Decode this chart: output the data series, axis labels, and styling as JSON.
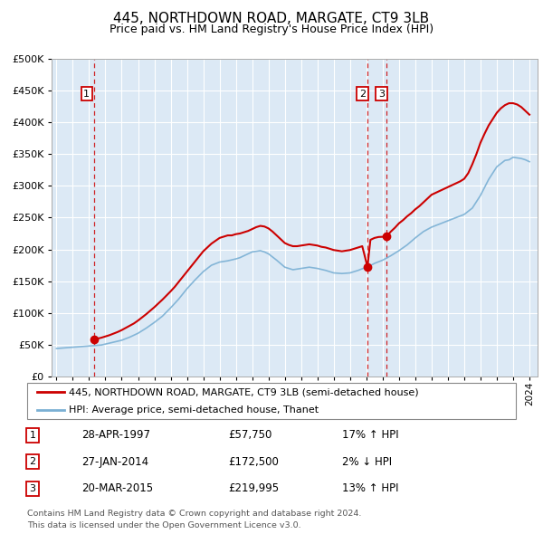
{
  "title": "445, NORTHDOWN ROAD, MARGATE, CT9 3LB",
  "subtitle": "Price paid vs. HM Land Registry's House Price Index (HPI)",
  "legend_label_red": "445, NORTHDOWN ROAD, MARGATE, CT9 3LB (semi-detached house)",
  "legend_label_blue": "HPI: Average price, semi-detached house, Thanet",
  "footer": "Contains HM Land Registry data © Crown copyright and database right 2024.\nThis data is licensed under the Open Government Licence v3.0.",
  "sales": [
    {
      "num": 1,
      "date": "28-APR-1997",
      "price": 57750,
      "price_str": "£57,750",
      "hpi_diff": "17% ↑ HPI",
      "year": 1997.3
    },
    {
      "num": 2,
      "date": "27-JAN-2014",
      "price": 172500,
      "price_str": "£172,500",
      "hpi_diff": "2% ↓ HPI",
      "year": 2014.07
    },
    {
      "num": 3,
      "date": "20-MAR-2015",
      "price": 219995,
      "price_str": "£219,995",
      "hpi_diff": "13% ↑ HPI",
      "year": 2015.22
    }
  ],
  "hpi_line": {
    "years": [
      1995,
      1995.25,
      1995.5,
      1995.75,
      1996,
      1996.25,
      1996.5,
      1996.75,
      1997,
      1997.25,
      1997.5,
      1997.75,
      1998,
      1998.25,
      1998.5,
      1998.75,
      1999,
      1999.25,
      1999.5,
      1999.75,
      2000,
      2000.25,
      2000.5,
      2000.75,
      2001,
      2001.25,
      2001.5,
      2001.75,
      2002,
      2002.25,
      2002.5,
      2002.75,
      2003,
      2003.25,
      2003.5,
      2003.75,
      2004,
      2004.25,
      2004.5,
      2004.75,
      2005,
      2005.25,
      2005.5,
      2005.75,
      2006,
      2006.25,
      2006.5,
      2006.75,
      2007,
      2007.25,
      2007.5,
      2007.75,
      2008,
      2008.25,
      2008.5,
      2008.75,
      2009,
      2009.25,
      2009.5,
      2009.75,
      2010,
      2010.25,
      2010.5,
      2010.75,
      2011,
      2011.25,
      2011.5,
      2011.75,
      2012,
      2012.25,
      2012.5,
      2012.75,
      2013,
      2013.25,
      2013.5,
      2013.75,
      2014,
      2014.25,
      2014.5,
      2014.75,
      2015,
      2015.25,
      2015.5,
      2015.75,
      2016,
      2016.25,
      2016.5,
      2016.75,
      2017,
      2017.25,
      2017.5,
      2017.75,
      2018,
      2018.25,
      2018.5,
      2018.75,
      2019,
      2019.25,
      2019.5,
      2019.75,
      2020,
      2020.25,
      2020.5,
      2020.75,
      2021,
      2021.25,
      2021.5,
      2021.75,
      2022,
      2022.25,
      2022.5,
      2022.75,
      2023,
      2023.25,
      2023.5,
      2023.75,
      2024
    ],
    "values": [
      44000,
      44500,
      45000,
      45500,
      46000,
      46500,
      47000,
      47500,
      48000,
      48500,
      49000,
      49500,
      51000,
      52500,
      54000,
      55500,
      57000,
      59500,
      62000,
      65000,
      68000,
      72000,
      76000,
      80500,
      85000,
      90000,
      95000,
      101500,
      108000,
      115000,
      122000,
      130000,
      138000,
      145000,
      152000,
      158500,
      165000,
      170000,
      175000,
      177500,
      180000,
      181000,
      182000,
      183500,
      185000,
      187000,
      190000,
      193000,
      196000,
      197000,
      198000,
      196000,
      193000,
      188000,
      183000,
      177500,
      172000,
      170000,
      168000,
      169000,
      170000,
      171000,
      172000,
      171000,
      170000,
      168500,
      167000,
      165000,
      163000,
      162500,
      162000,
      162500,
      163000,
      165000,
      167000,
      169500,
      172000,
      174500,
      178000,
      180500,
      183000,
      186500,
      190000,
      194000,
      198000,
      202500,
      207000,
      212500,
      218000,
      223000,
      228000,
      231500,
      235000,
      237500,
      240000,
      242500,
      245000,
      247500,
      250000,
      252500,
      255000,
      260000,
      265000,
      275000,
      285000,
      297500,
      310000,
      320000,
      330000,
      335000,
      340000,
      341000,
      345000,
      344000,
      343000,
      341000,
      338000
    ]
  },
  "property_line": {
    "years": [
      1997.3,
      1997.5,
      1997.75,
      1998,
      1998.25,
      1998.5,
      1998.75,
      1999,
      1999.25,
      1999.5,
      1999.75,
      2000,
      2000.25,
      2000.5,
      2000.75,
      2001,
      2001.25,
      2001.5,
      2001.75,
      2002,
      2002.25,
      2002.5,
      2002.75,
      2003,
      2003.25,
      2003.5,
      2003.75,
      2004,
      2004.25,
      2004.5,
      2004.75,
      2005,
      2005.25,
      2005.5,
      2005.75,
      2006,
      2006.25,
      2006.5,
      2006.75,
      2007,
      2007.25,
      2007.5,
      2007.75,
      2008,
      2008.25,
      2008.5,
      2008.75,
      2009,
      2009.25,
      2009.5,
      2009.75,
      2010,
      2010.25,
      2010.5,
      2010.75,
      2011,
      2011.25,
      2011.5,
      2011.75,
      2012,
      2012.25,
      2012.5,
      2012.75,
      2013,
      2013.25,
      2013.5,
      2013.75,
      2014.07,
      2014.25,
      2014.5,
      2014.75,
      2015.22,
      2015.5,
      2015.75,
      2016,
      2016.25,
      2016.5,
      2016.75,
      2017,
      2017.25,
      2017.5,
      2017.75,
      2018,
      2018.25,
      2018.5,
      2018.75,
      2019,
      2019.25,
      2019.5,
      2019.75,
      2020,
      2020.25,
      2020.5,
      2020.75,
      2021,
      2021.25,
      2021.5,
      2021.75,
      2022,
      2022.25,
      2022.5,
      2022.75,
      2023,
      2023.25,
      2023.5,
      2023.75,
      2024
    ],
    "values": [
      57750,
      59500,
      61000,
      63000,
      65000,
      67500,
      70000,
      73000,
      76500,
      80000,
      83500,
      88000,
      93000,
      98000,
      103500,
      109000,
      115000,
      121000,
      127500,
      134000,
      141000,
      149000,
      157000,
      165000,
      173000,
      181000,
      189000,
      197000,
      203000,
      209000,
      213500,
      218000,
      220000,
      222000,
      222000,
      224000,
      225000,
      227000,
      229000,
      232000,
      235000,
      237000,
      236000,
      233000,
      228000,
      222000,
      216000,
      210000,
      207000,
      205000,
      205000,
      206000,
      207000,
      208000,
      207000,
      206000,
      204000,
      203000,
      201000,
      199000,
      198000,
      197000,
      198000,
      199000,
      201000,
      203000,
      205000,
      172500,
      215000,
      218000,
      219500,
      219995,
      228000,
      234000,
      241000,
      246000,
      252000,
      257000,
      263000,
      268000,
      274000,
      280000,
      286000,
      289000,
      292000,
      295000,
      298000,
      301000,
      304000,
      307000,
      311000,
      320000,
      334000,
      350000,
      368000,
      382000,
      395000,
      405000,
      415000,
      422000,
      427000,
      430000,
      430000,
      428000,
      424000,
      418000,
      412000
    ]
  },
  "ylim": [
    0,
    500000
  ],
  "xlim": [
    1994.7,
    2024.5
  ],
  "yticks": [
    0,
    50000,
    100000,
    150000,
    200000,
    250000,
    300000,
    350000,
    400000,
    450000,
    500000
  ],
  "xticks": [
    1995,
    1996,
    1997,
    1998,
    1999,
    2000,
    2001,
    2002,
    2003,
    2004,
    2005,
    2006,
    2007,
    2008,
    2009,
    2010,
    2011,
    2012,
    2013,
    2014,
    2015,
    2016,
    2017,
    2018,
    2019,
    2020,
    2021,
    2022,
    2023,
    2024
  ],
  "bg_color": "#dce9f5",
  "grid_color": "#ffffff",
  "red_color": "#cc0000",
  "blue_color": "#7ab0d4",
  "dashed_color": "#cc0000",
  "title_fontsize": 11,
  "subtitle_fontsize": 9
}
